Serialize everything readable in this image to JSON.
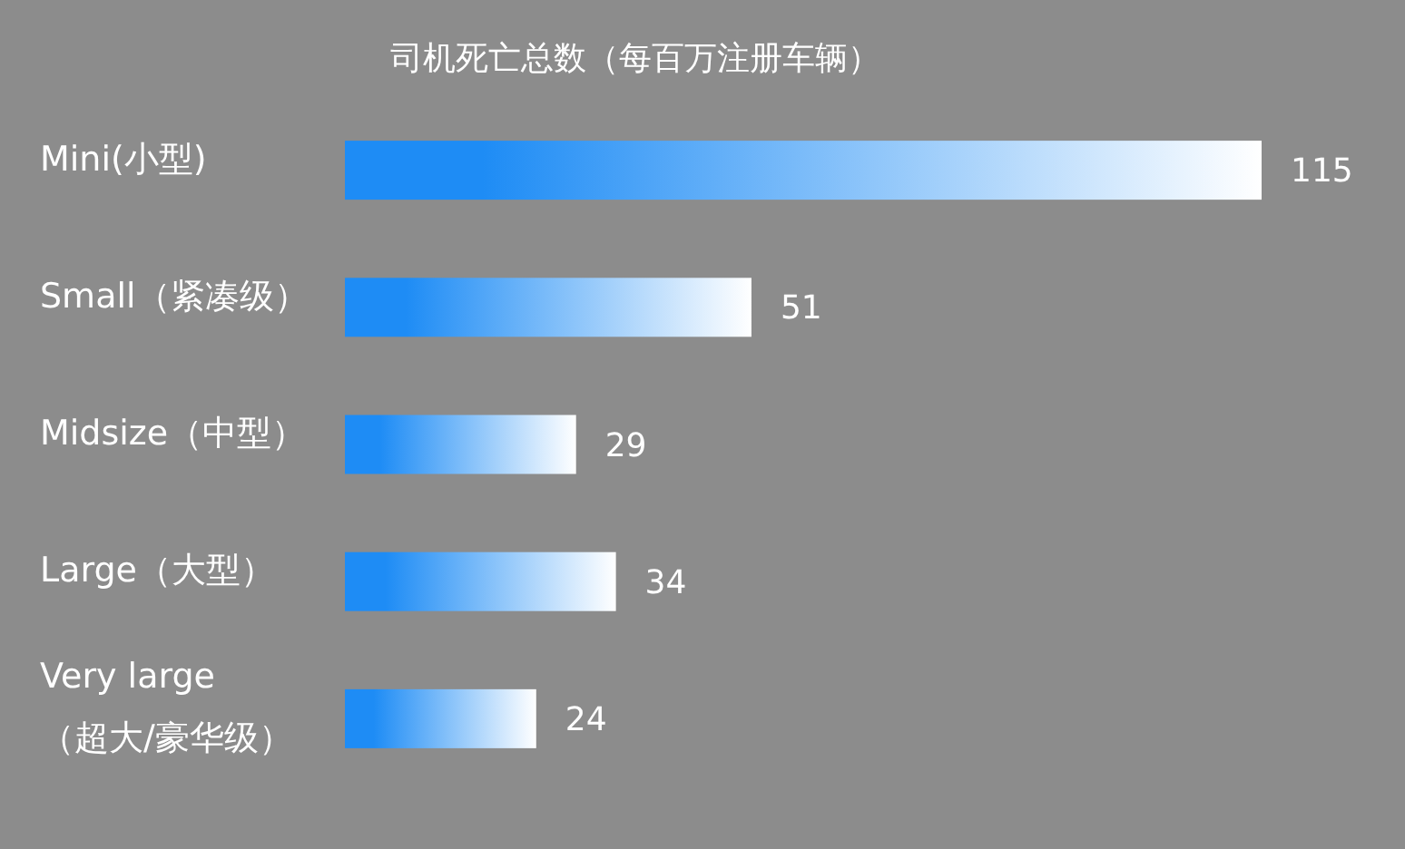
{
  "chart_data": {
    "type": "bar",
    "orientation": "horizontal",
    "title": "司机死亡总数（每百万注册车辆）",
    "categories": [
      "Mini(小型)",
      "Small（紧凑级）",
      "Midsize（中型）",
      "Large（大型）",
      "Very large（超大/豪华级）"
    ],
    "values": [
      115,
      51,
      29,
      34,
      24
    ],
    "color": "#1e8cf5",
    "data_labels": true
  }
}
